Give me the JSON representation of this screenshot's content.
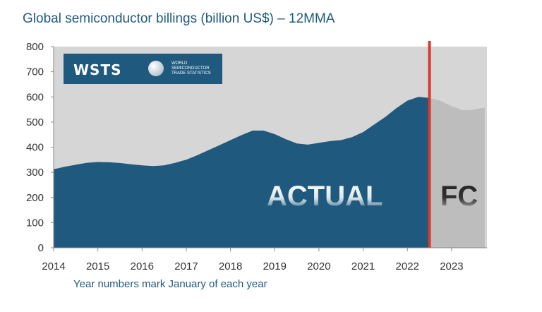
{
  "chart_data": {
    "type": "area",
    "title": "Global semiconductor billings (billion US$) – 12MMA",
    "xlabel": "Year numbers mark January of each year",
    "ylabel": "",
    "ylim": [
      0,
      800
    ],
    "yticks": [
      "0",
      "100",
      "200",
      "300",
      "400",
      "500",
      "600",
      "700",
      "800"
    ],
    "xlim": [
      2014,
      2023.8
    ],
    "xticks": [
      "2014",
      "2015",
      "2016",
      "2017",
      "2018",
      "2019",
      "2020",
      "2021",
      "2022",
      "2023"
    ],
    "divider_x": 2022.5,
    "series": [
      {
        "name": "ACTUAL",
        "color": "#1f5a7e",
        "x": [
          2014.0,
          2014.25,
          2014.5,
          2014.75,
          2015.0,
          2015.25,
          2015.5,
          2015.75,
          2016.0,
          2016.25,
          2016.5,
          2016.75,
          2017.0,
          2017.25,
          2017.5,
          2017.75,
          2018.0,
          2018.25,
          2018.5,
          2018.75,
          2019.0,
          2019.25,
          2019.5,
          2019.75,
          2020.0,
          2020.25,
          2020.5,
          2020.75,
          2021.0,
          2021.25,
          2021.5,
          2021.75,
          2022.0,
          2022.25,
          2022.5
        ],
        "values": [
          312,
          322,
          330,
          338,
          341,
          340,
          337,
          332,
          328,
          325,
          328,
          338,
          350,
          368,
          388,
          408,
          428,
          448,
          466,
          466,
          452,
          432,
          415,
          410,
          417,
          424,
          428,
          440,
          460,
          490,
          520,
          555,
          585,
          600,
          596
        ]
      },
      {
        "name": "FC",
        "color": "#bdbdbd",
        "x": [
          2022.5,
          2022.75,
          2023.0,
          2023.25,
          2023.5,
          2023.75
        ],
        "values": [
          596,
          585,
          563,
          547,
          549,
          558
        ]
      }
    ],
    "labels": {
      "actual": "ACTUAL",
      "forecast": "FC"
    },
    "colors": {
      "actual": "#1f5a7e",
      "forecast": "#bdbdbd",
      "divider": "#d93a2b",
      "plot_bg": "#d6d6d6"
    },
    "grid": false
  },
  "logo": {
    "mark": "WSTS",
    "line1": "WORLD",
    "line2": "SEMICONDUCTOR",
    "line3": "TRADE STATISTICS"
  }
}
